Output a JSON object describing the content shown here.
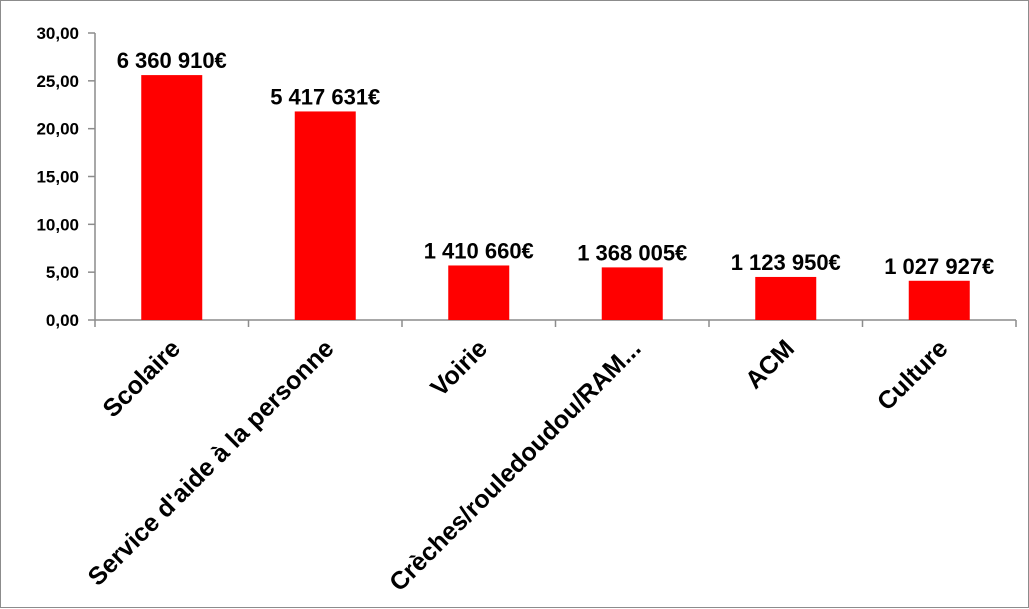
{
  "chart_data": {
    "type": "bar",
    "title": "",
    "xlabel": "",
    "ylabel": "",
    "ylim": [
      0,
      30
    ],
    "ytick_labels": [
      "0,00",
      "5,00",
      "10,00",
      "15,00",
      "20,00",
      "25,00",
      "30,00"
    ],
    "ytick_values": [
      0,
      5,
      10,
      15,
      20,
      25,
      30
    ],
    "categories": [
      "Scolaire",
      "Service d'aide à la personne",
      "Voirie",
      "Crèches/rouledoudou/RAM...",
      "ACM",
      "Culture"
    ],
    "values": [
      25.6,
      21.8,
      5.7,
      5.5,
      4.5,
      4.1
    ],
    "data_labels": [
      "6 360 910€",
      "5 417 631€",
      "1 410 660€",
      "1 368 005€",
      "1 123 950€",
      "1 027 927€"
    ],
    "bar_color": "#ff0000",
    "grid": false,
    "legend": "none"
  }
}
